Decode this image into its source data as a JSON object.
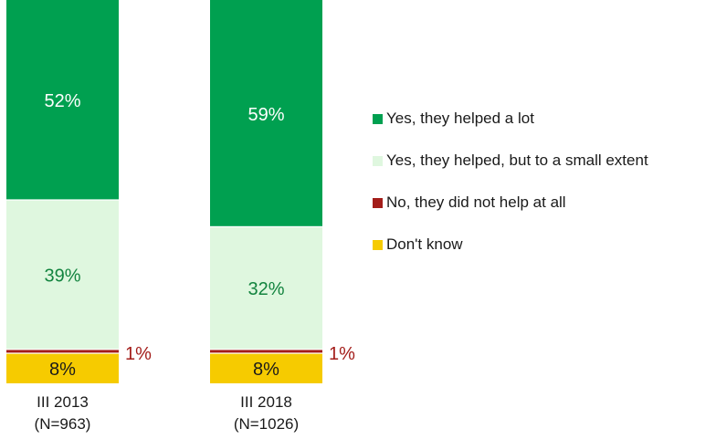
{
  "chart_data": {
    "type": "bar",
    "stacked": true,
    "percent_scale": true,
    "categories": [
      "III 2013\n(N=963)",
      "III 2018\n(N=1026)"
    ],
    "series": [
      {
        "name": "Don't know",
        "values": [
          8,
          8
        ],
        "color": "#f6cb00",
        "label_color": "#1a1a1a",
        "labels": [
          "8%",
          "8%"
        ],
        "label_side": "inside"
      },
      {
        "name": "No, they did not help at all",
        "values": [
          1,
          1
        ],
        "color": "#a31d1a",
        "label_color": "#a31d1a",
        "labels": [
          "1%",
          "1%"
        ],
        "label_side": "right"
      },
      {
        "name": "Yes, they helped, but to a small extent",
        "values": [
          39,
          32
        ],
        "color": "#dff7df",
        "label_color": "#13843f",
        "labels": [
          "39%",
          "32%"
        ],
        "label_side": "inside"
      },
      {
        "name": "Yes, they helped a lot",
        "values": [
          52,
          59
        ],
        "color": "#00a050",
        "label_color": "#ffffff",
        "labels": [
          "52%",
          "59%"
        ],
        "label_side": "inside"
      }
    ],
    "legend_order": [
      3,
      2,
      1,
      0
    ],
    "legend_position": "right",
    "ylim": [
      0,
      100
    ],
    "grid": false
  }
}
